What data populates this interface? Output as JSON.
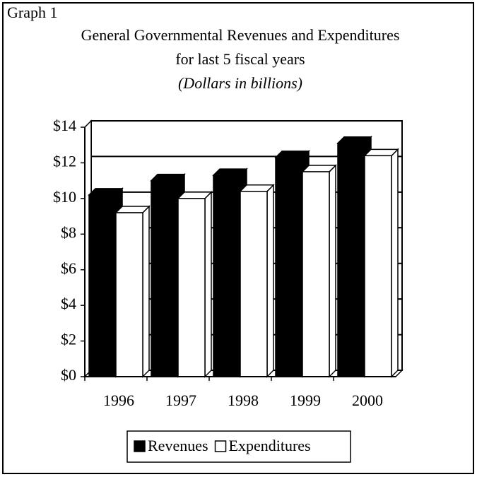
{
  "chart_data": {
    "type": "bar3d",
    "label": "Graph 1",
    "title": "General Governmental Revenues and Expenditures",
    "subtitle": "for last 5 fiscal years",
    "unit_note": "(Dollars in billions)",
    "categories": [
      "1996",
      "1997",
      "1998",
      "1999",
      "2000"
    ],
    "series": [
      {
        "name": "Revenues",
        "color": "#000000",
        "values": [
          10.2,
          11.0,
          11.3,
          12.3,
          13.1
        ]
      },
      {
        "name": "Expenditures",
        "color": "#ffffff",
        "values": [
          9.2,
          10.0,
          10.4,
          11.5,
          12.4
        ]
      }
    ],
    "ylim": [
      0,
      14
    ],
    "yticks": [
      {
        "value": 0,
        "label": "$0"
      },
      {
        "value": 2,
        "label": "$2"
      },
      {
        "value": 4,
        "label": "$4"
      },
      {
        "value": 6,
        "label": "$6"
      },
      {
        "value": 8,
        "label": "$8"
      },
      {
        "value": 10,
        "label": "$10"
      },
      {
        "value": 12,
        "label": "$12"
      },
      {
        "value": 14,
        "label": "$14"
      }
    ],
    "grid": true,
    "legend": "bottom"
  }
}
